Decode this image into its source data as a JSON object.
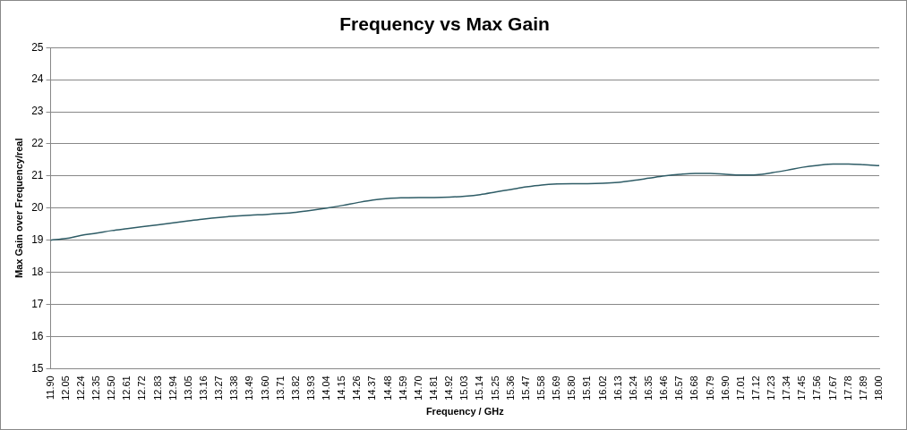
{
  "chart_data": {
    "type": "line",
    "title": "Frequency vs Max Gain",
    "xlabel": "Frequency / GHz",
    "ylabel": "Max Gain over Frequency/real",
    "categories": [
      "11.90",
      "12.05",
      "12.24",
      "12.35",
      "12.50",
      "12.61",
      "12.72",
      "12.83",
      "12.94",
      "13.05",
      "13.16",
      "13.27",
      "13.38",
      "13.49",
      "13.60",
      "13.71",
      "13.82",
      "13.93",
      "14.04",
      "14.15",
      "14.26",
      "14.37",
      "14.48",
      "14.59",
      "14.70",
      "14.81",
      "14.92",
      "15.03",
      "15.14",
      "15.25",
      "15.36",
      "15.47",
      "15.58",
      "15.69",
      "15.80",
      "15.91",
      "16.02",
      "16.13",
      "16.24",
      "16.35",
      "16.46",
      "16.57",
      "16.68",
      "16.79",
      "16.90",
      "17.01",
      "17.12",
      "17.23",
      "17.34",
      "17.45",
      "17.56",
      "17.67",
      "17.78",
      "17.89",
      "18.00"
    ],
    "series": [
      {
        "color": "#2e5c66",
        "values": [
          19.0,
          19.05,
          19.15,
          19.22,
          19.3,
          19.36,
          19.42,
          19.48,
          19.54,
          19.6,
          19.66,
          19.71,
          19.75,
          19.78,
          19.8,
          19.83,
          19.87,
          19.93,
          20.0,
          20.08,
          20.17,
          20.25,
          20.3,
          20.32,
          20.33,
          20.33,
          20.34,
          20.37,
          20.42,
          20.5,
          20.58,
          20.66,
          20.72,
          20.75,
          20.76,
          20.76,
          20.77,
          20.8,
          20.86,
          20.93,
          21.0,
          21.05,
          21.08,
          21.08,
          21.05,
          21.03,
          21.04,
          21.1,
          21.18,
          21.27,
          21.33,
          21.37,
          21.37,
          21.35,
          21.32
        ]
      }
    ],
    "ylim": [
      15,
      25
    ],
    "yticks": [
      15,
      16,
      17,
      18,
      19,
      20,
      21,
      22,
      23,
      24,
      25
    ],
    "grid": "y",
    "legend": false,
    "marker": "none",
    "line_style": "solid"
  }
}
